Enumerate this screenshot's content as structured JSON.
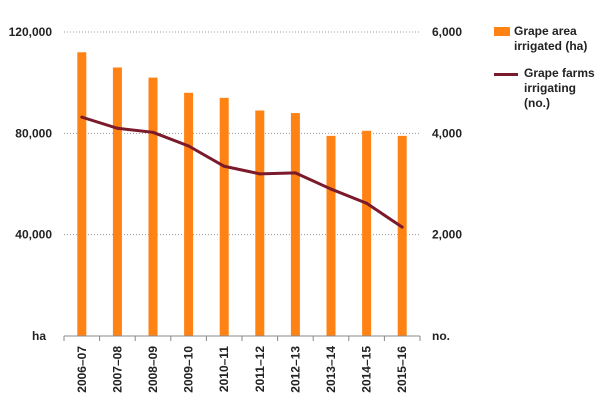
{
  "chart_data": {
    "type": "bar+line",
    "categories": [
      "2006–07",
      "2007–08",
      "2008–09",
      "2009–10",
      "2010–11",
      "2011–12",
      "2012–13",
      "2013–14",
      "2014–15",
      "2015–16"
    ],
    "series": [
      {
        "name": "Grape area irrigated (ha)",
        "type": "bar",
        "axis": "left",
        "color": "#FF8214",
        "values": [
          112000,
          106000,
          102000,
          96000,
          94000,
          89000,
          88000,
          79000,
          81000,
          79000
        ]
      },
      {
        "name": "Grape farms irrigating (no.)",
        "type": "line",
        "axis": "right",
        "color": "#7B1A2A",
        "values": [
          4320,
          4100,
          4020,
          3750,
          3350,
          3200,
          3220,
          2900,
          2620,
          2150
        ]
      }
    ],
    "left_axis": {
      "label": "ha",
      "ylim": [
        0,
        120000
      ],
      "ticks": [
        40000,
        80000,
        120000
      ],
      "tick_labels": [
        "40,000",
        "80,000",
        "120,000"
      ]
    },
    "right_axis": {
      "label": "no.",
      "ylim": [
        0,
        6000
      ],
      "ticks": [
        2000,
        4000,
        6000
      ],
      "tick_labels": [
        "2,000",
        "4,000",
        "6,000"
      ]
    },
    "gridlines": "dotted horizontal",
    "legend_position": "top-right"
  },
  "legend": {
    "bar_label": "Grape area irrigated (ha)",
    "line_label": "Grape farms irrigating (no.)"
  }
}
